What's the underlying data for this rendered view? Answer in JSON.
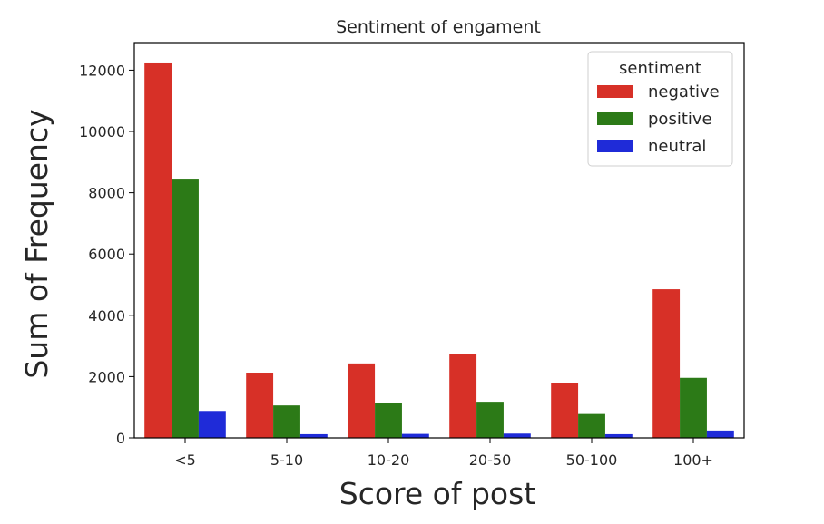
{
  "chart_data": {
    "type": "bar",
    "title": "Sentiment of engament",
    "xlabel": "Score of post",
    "ylabel": "Sum of Frequency",
    "categories": [
      "<5",
      "5-10",
      "10-20",
      "20-50",
      "50-100",
      "100+"
    ],
    "series": [
      {
        "name": "negative",
        "color": "#d73027",
        "values": [
          12250,
          2130,
          2430,
          2730,
          1800,
          4850
        ]
      },
      {
        "name": "positive",
        "color": "#2c7a17",
        "values": [
          8460,
          1060,
          1130,
          1180,
          780,
          1960
        ]
      },
      {
        "name": "neutral",
        "color": "#1f2bd8",
        "values": [
          880,
          120,
          130,
          140,
          120,
          240
        ]
      }
    ],
    "ylim": [
      0,
      12900
    ],
    "yticks": [
      0,
      2000,
      4000,
      6000,
      8000,
      10000,
      12000
    ],
    "grid": false,
    "legend": {
      "title": "sentiment",
      "placement": "upper-right"
    }
  }
}
